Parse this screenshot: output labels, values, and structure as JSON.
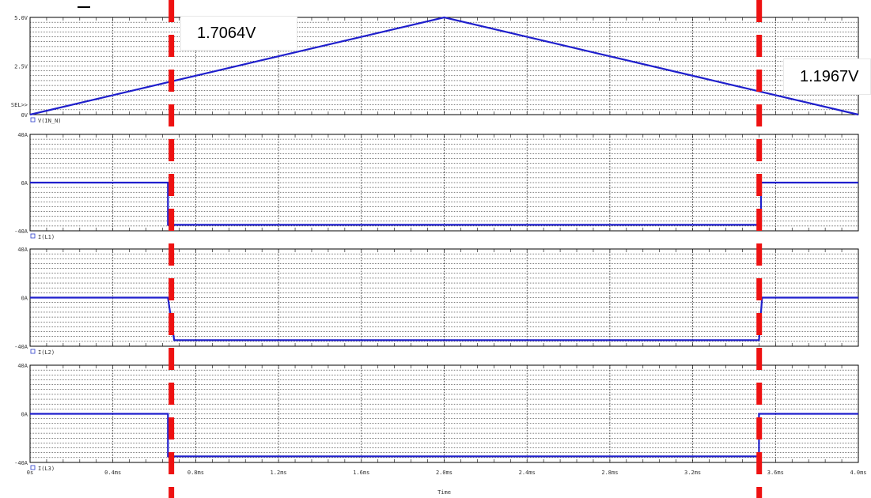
{
  "chart_data": {
    "type": "line",
    "x_range": [
      0,
      4.0
    ],
    "x_unit": "ms",
    "x_ticks": [
      "0s",
      "0.4ms",
      "0.8ms",
      "1.2ms",
      "1.6ms",
      "2.0ms",
      "2.4ms",
      "2.8ms",
      "3.2ms",
      "3.6ms",
      "4.0ms"
    ],
    "xlabel": "Time",
    "grid": true,
    "cursors": [
      {
        "x": 0.6825,
        "readout": "1.7064V"
      },
      {
        "x": 3.5213,
        "readout": "1.1967V"
      }
    ],
    "panels": [
      {
        "legend": "V(IN_N)",
        "ylim": [
          0,
          5
        ],
        "y_ticks": [
          {
            "v": 5,
            "label": "5.0V"
          },
          {
            "v": 2.5,
            "label": "2.5V"
          },
          {
            "v": 0,
            "label": "0V"
          }
        ],
        "select_marker": "SEL>>",
        "series": [
          {
            "x": [
              0,
              2.0,
              4.0
            ],
            "y": [
              0,
              5.0,
              0
            ]
          }
        ]
      },
      {
        "legend": "I(L1)",
        "ylim": [
          -40,
          40
        ],
        "y_ticks": [
          {
            "v": 40,
            "label": "40A"
          },
          {
            "v": 0,
            "label": "0A"
          },
          {
            "v": -40,
            "label": "-40A"
          }
        ],
        "series": [
          {
            "x": [
              0,
              0.666,
              0.666,
              3.53,
              3.53,
              4.0
            ],
            "y": [
              0,
              0,
              -35,
              -35,
              0,
              0
            ]
          }
        ]
      },
      {
        "legend": "I(L2)",
        "ylim": [
          -40,
          40
        ],
        "y_ticks": [
          {
            "v": 40,
            "label": "40A"
          },
          {
            "v": 0,
            "label": "0A"
          },
          {
            "v": -40,
            "label": "-40A"
          }
        ],
        "series": [
          {
            "x": [
              0,
              0.666,
              0.696,
              3.52,
              3.535,
              4.0
            ],
            "y": [
              0,
              0,
              -35,
              -35,
              0,
              0
            ]
          }
        ]
      },
      {
        "legend": "I(L3)",
        "ylim": [
          -40,
          40
        ],
        "y_ticks": [
          {
            "v": 40,
            "label": "40A"
          },
          {
            "v": 0,
            "label": "0A"
          },
          {
            "v": -40,
            "label": "-40A"
          }
        ],
        "series": [
          {
            "x": [
              0,
              0.666,
              0.666,
              3.52,
              3.52,
              4.0
            ],
            "y": [
              0,
              0,
              -35,
              -35,
              0,
              0
            ]
          }
        ]
      }
    ]
  },
  "colors": {
    "trace": "#1f1fcc",
    "cursor": "#ee1111",
    "grid": "#000000",
    "legend_box": "#2a3ccc",
    "axis_text": "#333333"
  }
}
